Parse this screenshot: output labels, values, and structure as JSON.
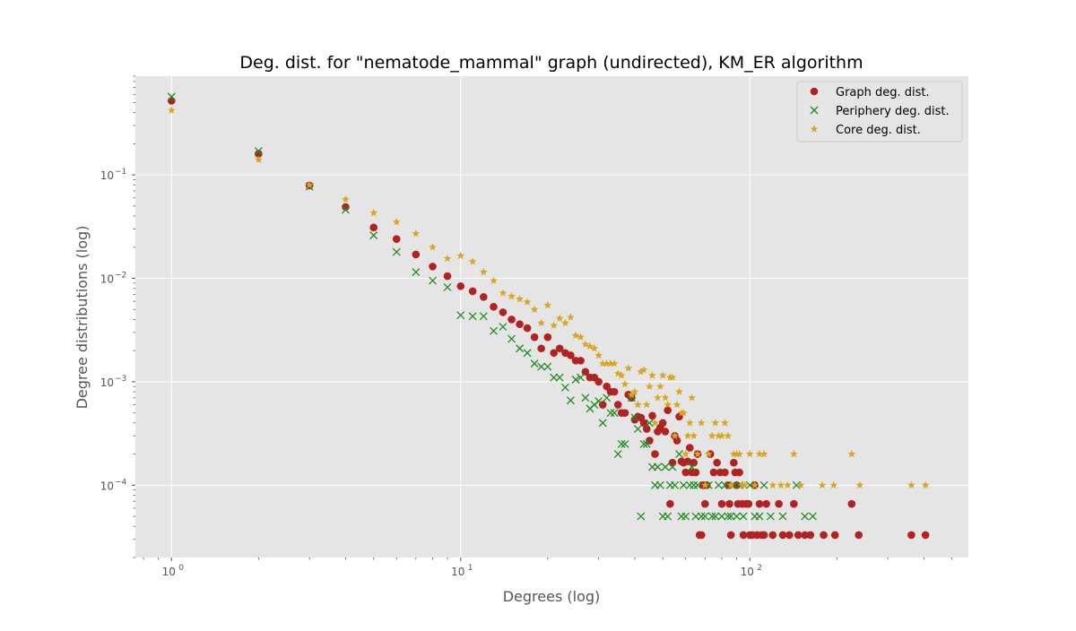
{
  "chart_data": {
    "type": "scatter",
    "title": "Deg. dist. for \"nematode_mammal\" graph (undirected), KM_ER algorithm",
    "xlabel": "Degrees (log)",
    "ylabel": "Degree distributions (log)",
    "xscale": "log",
    "yscale": "log",
    "xlim": [
      0.75,
      570
    ],
    "ylim": [
      2e-05,
      0.9
    ],
    "grid": true,
    "legend_position": "top-right",
    "x_ticks": [
      {
        "value": 1,
        "base": "10",
        "exp": "0"
      },
      {
        "value": 10,
        "base": "10",
        "exp": "1"
      },
      {
        "value": 100,
        "base": "10",
        "exp": "2"
      }
    ],
    "y_ticks": [
      {
        "value": 0.0001,
        "base": "10",
        "exp": "−4"
      },
      {
        "value": 0.001,
        "base": "10",
        "exp": "−3"
      },
      {
        "value": 0.01,
        "base": "10",
        "exp": "−2"
      },
      {
        "value": 0.1,
        "base": "10",
        "exp": "−1"
      }
    ],
    "series": [
      {
        "name": "Graph deg. dist.",
        "marker": "circle",
        "color": "#b22222",
        "points": [
          [
            1,
            0.52
          ],
          [
            2,
            0.16
          ],
          [
            3,
            0.079
          ],
          [
            4,
            0.049
          ],
          [
            5,
            0.031
          ],
          [
            6,
            0.024
          ],
          [
            7,
            0.017
          ],
          [
            8,
            0.013
          ],
          [
            9,
            0.0105
          ],
          [
            10,
            0.0084
          ],
          [
            11,
            0.0075
          ],
          [
            12,
            0.0066
          ],
          [
            13,
            0.0053
          ],
          [
            14,
            0.0047
          ],
          [
            15,
            0.004
          ],
          [
            16,
            0.0036
          ],
          [
            17,
            0.0033
          ],
          [
            18,
            0.0027
          ],
          [
            19,
            0.0021
          ],
          [
            20,
            0.0027
          ],
          [
            21,
            0.0019
          ],
          [
            22,
            0.0021
          ],
          [
            23,
            0.0019
          ],
          [
            24,
            0.0018
          ],
          [
            25,
            0.0016
          ],
          [
            26,
            0.0016
          ],
          [
            27,
            0.00125
          ],
          [
            28,
            0.0011
          ],
          [
            29,
            0.0011
          ],
          [
            30,
            0.001
          ],
          [
            31,
            0.0006
          ],
          [
            32,
            0.0009
          ],
          [
            33,
            0.0008
          ],
          [
            34,
            0.0008
          ],
          [
            35,
            0.0006
          ],
          [
            36,
            0.0005
          ],
          [
            37,
            0.0005
          ],
          [
            38,
            0.00075
          ],
          [
            39,
            0.0007
          ],
          [
            40,
            0.00043
          ],
          [
            41,
            0.00046
          ],
          [
            42,
            0.00045
          ],
          [
            43,
            0.0004
          ],
          [
            44,
            0.00035
          ],
          [
            45,
            0.00027
          ],
          [
            46,
            0.00047
          ],
          [
            47,
            0.0002
          ],
          [
            48,
            0.00033
          ],
          [
            49,
            0.00036
          ],
          [
            50,
            0.0004
          ],
          [
            51,
            0.00033
          ],
          [
            52,
            0.00053
          ],
          [
            53,
            6.6e-05
          ],
          [
            54,
            0.000165
          ],
          [
            55,
            0.0003
          ],
          [
            56,
            0.00027
          ],
          [
            57,
            0.00046
          ],
          [
            58,
            0.00017
          ],
          [
            59,
            0.000165
          ],
          [
            60,
            0.000133
          ],
          [
            61,
            0.00017
          ],
          [
            62,
            0.00023
          ],
          [
            63,
            0.000133
          ],
          [
            64,
            0.000165
          ],
          [
            65,
            0.000133
          ],
          [
            66,
            0.0002
          ],
          [
            67,
            3.3e-05
          ],
          [
            68,
            3.3e-05
          ],
          [
            69,
            0.0001
          ],
          [
            70,
            6.6e-05
          ],
          [
            71,
            0.0001
          ],
          [
            73,
            0.0002
          ],
          [
            75,
            0.000133
          ],
          [
            77,
            0.000165
          ],
          [
            79,
            0.000133
          ],
          [
            80,
            6.6e-05
          ],
          [
            82,
            0.000133
          ],
          [
            84,
            0.0001
          ],
          [
            85,
            6.6e-05
          ],
          [
            86,
            3.3e-05
          ],
          [
            88,
            0.000165
          ],
          [
            89,
            0.000133
          ],
          [
            90,
            0.0001
          ],
          [
            91,
            6.6e-05
          ],
          [
            92,
            0.000133
          ],
          [
            94,
            6.6e-05
          ],
          [
            95,
            3.3e-05
          ],
          [
            97,
            6.6e-05
          ],
          [
            99,
            6.6e-05
          ],
          [
            100,
            3.3e-05
          ],
          [
            102,
            3.3e-05
          ],
          [
            104,
            0.0001
          ],
          [
            106,
            3.3e-05
          ],
          [
            108,
            6.6e-05
          ],
          [
            110,
            3.3e-05
          ],
          [
            112,
            3.3e-05
          ],
          [
            114,
            6.6e-05
          ],
          [
            120,
            3.3e-05
          ],
          [
            126,
            6.6e-05
          ],
          [
            130,
            3.3e-05
          ],
          [
            137,
            3.3e-05
          ],
          [
            142,
            6.6e-05
          ],
          [
            147,
            3.3e-05
          ],
          [
            155,
            3.3e-05
          ],
          [
            162,
            3.3e-05
          ],
          [
            180,
            3.3e-05
          ],
          [
            197,
            3.3e-05
          ],
          [
            225,
            6.6e-05
          ],
          [
            238,
            3.3e-05
          ],
          [
            362,
            3.3e-05
          ],
          [
            405,
            3.3e-05
          ]
        ]
      },
      {
        "name": "Periphery deg. dist.",
        "marker": "x",
        "color": "#228b22",
        "points": [
          [
            1,
            0.57
          ],
          [
            2,
            0.17
          ],
          [
            3,
            0.077
          ],
          [
            4,
            0.046
          ],
          [
            5,
            0.026
          ],
          [
            6,
            0.018
          ],
          [
            7,
            0.0115
          ],
          [
            8,
            0.0095
          ],
          [
            9,
            0.0082
          ],
          [
            10,
            0.0044
          ],
          [
            11,
            0.0043
          ],
          [
            12,
            0.0043
          ],
          [
            13,
            0.0031
          ],
          [
            14,
            0.0034
          ],
          [
            15,
            0.0026
          ],
          [
            16,
            0.0021
          ],
          [
            17,
            0.0019
          ],
          [
            18,
            0.0015
          ],
          [
            19,
            0.0014
          ],
          [
            20,
            0.0014
          ],
          [
            21,
            0.0011
          ],
          [
            22,
            0.0011
          ],
          [
            23,
            0.00088
          ],
          [
            24,
            0.00066
          ],
          [
            25,
            0.00105
          ],
          [
            26,
            0.0011
          ],
          [
            27,
            0.0007
          ],
          [
            28,
            0.00055
          ],
          [
            29,
            0.0006
          ],
          [
            30,
            0.00065
          ],
          [
            31,
            0.0004
          ],
          [
            32,
            0.0007
          ],
          [
            33,
            0.0005
          ],
          [
            34,
            0.0005
          ],
          [
            35,
            0.0002
          ],
          [
            36,
            0.00025
          ],
          [
            37,
            0.00025
          ],
          [
            39,
            0.0007
          ],
          [
            40,
            0.00045
          ],
          [
            41,
            0.00035
          ],
          [
            42,
            5e-05
          ],
          [
            43,
            0.00025
          ],
          [
            44,
            0.00025
          ],
          [
            45,
            0.0004
          ],
          [
            46,
            0.00015
          ],
          [
            47,
            0.0001
          ],
          [
            48,
            0.00015
          ],
          [
            49,
            0.0001
          ],
          [
            50,
            5e-05
          ],
          [
            51,
            0.00015
          ],
          [
            52,
            5e-05
          ],
          [
            53,
            0.0001
          ],
          [
            54,
            0.00015
          ],
          [
            55,
            0.0001
          ],
          [
            57,
            0.0002
          ],
          [
            58,
            5e-05
          ],
          [
            59,
            0.0001
          ],
          [
            60,
            5e-05
          ],
          [
            62,
            0.0001
          ],
          [
            63,
            0.00015
          ],
          [
            64,
            0.0001
          ],
          [
            65,
            5e-05
          ],
          [
            66,
            0.0001
          ],
          [
            68,
            5e-05
          ],
          [
            70,
            5e-05
          ],
          [
            72,
            0.0001
          ],
          [
            74,
            5e-05
          ],
          [
            76,
            5e-05
          ],
          [
            78,
            0.0001
          ],
          [
            80,
            5e-05
          ],
          [
            82,
            0.0001
          ],
          [
            84,
            5e-05
          ],
          [
            86,
            5e-05
          ],
          [
            88,
            0.0001
          ],
          [
            90,
            5e-05
          ],
          [
            92,
            0.0001
          ],
          [
            95,
            5e-05
          ],
          [
            100,
            0.0001
          ],
          [
            104,
            5e-05
          ],
          [
            108,
            5e-05
          ],
          [
            112,
            0.0001
          ],
          [
            118,
            5e-05
          ],
          [
            130,
            5e-05
          ],
          [
            145,
            0.0001
          ],
          [
            155,
            5e-05
          ],
          [
            165,
            5e-05
          ]
        ]
      },
      {
        "name": "Core deg. dist.",
        "marker": "star",
        "color": "#daa520",
        "points": [
          [
            1,
            0.42
          ],
          [
            2,
            0.14
          ],
          [
            3,
            0.08
          ],
          [
            4,
            0.058
          ],
          [
            5,
            0.043
          ],
          [
            6,
            0.035
          ],
          [
            7,
            0.027
          ],
          [
            8,
            0.02
          ],
          [
            9,
            0.0155
          ],
          [
            10,
            0.0165
          ],
          [
            11,
            0.0145
          ],
          [
            12,
            0.0115
          ],
          [
            13,
            0.0095
          ],
          [
            14,
            0.0072
          ],
          [
            15,
            0.0067
          ],
          [
            16,
            0.0063
          ],
          [
            17,
            0.0059
          ],
          [
            18,
            0.005
          ],
          [
            19,
            0.0037
          ],
          [
            20,
            0.0055
          ],
          [
            21,
            0.0035
          ],
          [
            22,
            0.0041
          ],
          [
            23,
            0.0037
          ],
          [
            24,
            0.0042
          ],
          [
            25,
            0.0028
          ],
          [
            26,
            0.0027
          ],
          [
            27,
            0.0023
          ],
          [
            28,
            0.0022
          ],
          [
            29,
            0.0021
          ],
          [
            30,
            0.0018
          ],
          [
            31,
            0.0015
          ],
          [
            32,
            0.0015
          ],
          [
            33,
            0.0015
          ],
          [
            34,
            0.0015
          ],
          [
            35,
            0.0012
          ],
          [
            36,
            0.00115
          ],
          [
            37,
            0.00095
          ],
          [
            38,
            0.00135
          ],
          [
            39,
            0.00075
          ],
          [
            40,
            0.0008
          ],
          [
            41,
            0.0006
          ],
          [
            42,
            0.00125
          ],
          [
            43,
            0.0013
          ],
          [
            44,
            0.0006
          ],
          [
            45,
            0.0009
          ],
          [
            46,
            0.00115
          ],
          [
            47,
            0.0004
          ],
          [
            48,
            0.0007
          ],
          [
            49,
            0.0009
          ],
          [
            50,
            0.00115
          ],
          [
            51,
            0.0007
          ],
          [
            52,
            0.0006
          ],
          [
            53,
            0.0011
          ],
          [
            54,
            0.0011
          ],
          [
            55,
            0.0003
          ],
          [
            56,
            0.0006
          ],
          [
            57,
            0.0008
          ],
          [
            58,
            0.0005
          ],
          [
            59,
            0.0005
          ],
          [
            60,
            0.0002
          ],
          [
            61,
            0.0003
          ],
          [
            62,
            0.0004
          ],
          [
            63,
            0.0007
          ],
          [
            64,
            0.0003
          ],
          [
            66,
            0.0002
          ],
          [
            68,
            0.0004
          ],
          [
            70,
            0.0001
          ],
          [
            72,
            0.0002
          ],
          [
            74,
            0.0003
          ],
          [
            76,
            0.0004
          ],
          [
            78,
            0.0003
          ],
          [
            80,
            0.0003
          ],
          [
            82,
            0.0004
          ],
          [
            84,
            0.0003
          ],
          [
            86,
            0.0001
          ],
          [
            88,
            0.0002
          ],
          [
            90,
            0.0002
          ],
          [
            92,
            0.0002
          ],
          [
            94,
            0.0001
          ],
          [
            96,
            0.0001
          ],
          [
            100,
            0.0002
          ],
          [
            104,
            0.0001
          ],
          [
            108,
            0.0002
          ],
          [
            112,
            0.0002
          ],
          [
            120,
            0.0001
          ],
          [
            128,
            0.0001
          ],
          [
            135,
            0.0001
          ],
          [
            142,
            0.0002
          ],
          [
            150,
            0.0001
          ],
          [
            178,
            0.0001
          ],
          [
            195,
            0.0001
          ],
          [
            225,
            0.0002
          ],
          [
            240,
            0.0001
          ],
          [
            362,
            0.0001
          ],
          [
            405,
            0.0001
          ]
        ]
      }
    ]
  }
}
